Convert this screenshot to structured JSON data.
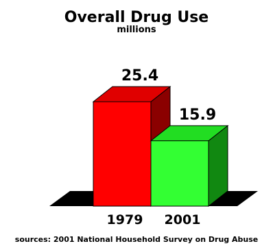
{
  "chart_data": {
    "type": "bar",
    "title": "Overall Drug Use",
    "subtitle": "millions",
    "categories": [
      "1979",
      "2001"
    ],
    "values": [
      25.4,
      15.9
    ],
    "data_labels": [
      "25.4",
      "15.9"
    ],
    "colors": {
      "1979": {
        "front": "#ff0000",
        "side": "#8b0000",
        "top": "#e00000"
      },
      "2001": {
        "front": "#33ff33",
        "side": "#118811",
        "top": "#22dd22"
      },
      "floor": "#000000"
    },
    "style": "3d",
    "grid": false,
    "legend": "none",
    "ylim": [
      0,
      25.4
    ]
  },
  "source": "sources: 2001 National Household Survey on Drug Abuse"
}
